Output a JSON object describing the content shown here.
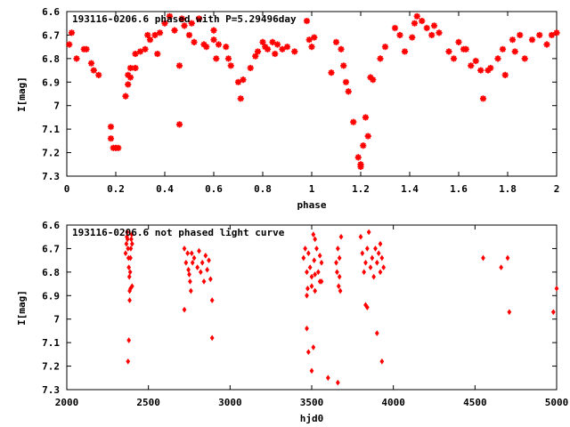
{
  "colors": {
    "points": "#ff0000",
    "axes": "#000000",
    "background": "#ffffff"
  },
  "chart_data": [
    {
      "type": "scatter",
      "title": "193116-0206.6 phased with P=5.29496day",
      "xlabel": "phase",
      "ylabel": "I[mag]",
      "xlim": [
        0,
        2
      ],
      "ylim": [
        6.6,
        7.3
      ],
      "y_inverted": true,
      "grid": false,
      "xticks": [
        "0",
        "0.2",
        "0.4",
        "0.6",
        "0.8",
        "1",
        "1.2",
        "1.4",
        "1.6",
        "1.8",
        "2"
      ],
      "xtick_values": [
        0,
        0.2,
        0.4,
        0.6,
        0.8,
        1,
        1.2,
        1.4,
        1.6,
        1.8,
        2
      ],
      "yticks": [
        "6.6",
        "6.7",
        "6.8",
        "6.9",
        "7",
        "7.1",
        "7.2",
        "7.3"
      ],
      "ytick_values": [
        6.6,
        6.7,
        6.8,
        6.9,
        7,
        7.1,
        7.2,
        7.3
      ],
      "series": [
        {
          "marker": "star",
          "x": [
            0.01,
            0.02,
            0.04,
            0.07,
            0.08,
            0.1,
            0.11,
            0.13,
            0.18,
            0.18,
            0.19,
            0.2,
            0.21,
            0.24,
            0.25,
            0.25,
            0.26,
            0.26,
            0.28,
            0.28,
            0.3,
            0.32,
            0.33,
            0.34,
            0.36,
            0.37,
            0.38,
            0.4,
            0.42,
            0.44,
            0.46,
            0.46,
            0.47,
            0.48,
            0.5,
            0.51,
            0.52,
            0.54,
            0.56,
            0.57,
            0.6,
            0.6,
            0.61,
            0.62,
            0.65,
            0.66,
            0.67,
            0.7,
            0.71,
            0.72,
            0.75,
            0.77,
            0.78,
            0.8,
            0.81,
            0.82,
            0.84,
            0.85,
            0.86,
            0.88,
            0.9,
            0.93,
            0.98,
            0.99,
            1,
            1.01,
            1.08,
            1.1,
            1.12,
            1.13,
            1.14,
            1.15,
            1.17,
            1.19,
            1.2,
            1.2,
            1.21,
            1.22,
            1.23,
            1.24,
            1.25,
            1.28,
            1.3,
            1.34,
            1.36,
            1.38,
            1.41,
            1.42,
            1.43,
            1.45,
            1.47,
            1.49,
            1.5,
            1.52,
            1.56,
            1.58,
            1.6,
            1.62,
            1.63,
            1.65,
            1.67,
            1.69,
            1.7,
            1.72,
            1.73,
            1.76,
            1.78,
            1.79,
            1.82,
            1.83,
            1.85,
            1.87,
            1.9,
            1.93,
            1.96,
            1.98,
            2
          ],
          "y": [
            6.74,
            6.69,
            6.8,
            6.76,
            6.76,
            6.82,
            6.85,
            6.87,
            7.09,
            7.14,
            7.18,
            7.18,
            7.18,
            6.96,
            6.87,
            6.91,
            6.84,
            6.88,
            6.84,
            6.78,
            6.77,
            6.76,
            6.7,
            6.72,
            6.7,
            6.78,
            6.69,
            6.65,
            6.62,
            6.68,
            6.83,
            7.08,
            6.63,
            6.66,
            6.7,
            6.65,
            6.73,
            6.63,
            6.74,
            6.75,
            6.68,
            6.72,
            6.8,
            6.74,
            6.75,
            6.8,
            6.83,
            6.9,
            6.97,
            6.89,
            6.84,
            6.79,
            6.77,
            6.73,
            6.75,
            6.76,
            6.73,
            6.78,
            6.74,
            6.76,
            6.75,
            6.77,
            6.64,
            6.72,
            6.75,
            6.71,
            6.86,
            6.73,
            6.76,
            6.83,
            6.9,
            6.94,
            7.07,
            7.22,
            7.25,
            7.26,
            7.17,
            7.05,
            7.13,
            6.88,
            6.89,
            6.8,
            6.75,
            6.67,
            6.7,
            6.77,
            6.71,
            6.65,
            6.62,
            6.64,
            6.67,
            6.7,
            6.66,
            6.69,
            6.77,
            6.8,
            6.73,
            6.76,
            6.76,
            6.83,
            6.81,
            6.85,
            6.97,
            6.85,
            6.84,
            6.8,
            6.76,
            6.87,
            6.72,
            6.77,
            6.7,
            6.8,
            6.72,
            6.7,
            6.74,
            6.7,
            6.69
          ]
        }
      ]
    },
    {
      "type": "scatter",
      "title": "193116-0206.6 not phased light curve",
      "xlabel": "hjd0",
      "ylabel": "I[mag]",
      "xlim": [
        2000,
        5000
      ],
      "ylim": [
        6.6,
        7.3
      ],
      "y_inverted": true,
      "grid": false,
      "xticks": [
        "2000",
        "2500",
        "3000",
        "3500",
        "4000",
        "4500",
        "5000"
      ],
      "xtick_values": [
        2000,
        2500,
        3000,
        3500,
        4000,
        4500,
        5000
      ],
      "yticks": [
        "6.6",
        "6.7",
        "6.8",
        "6.9",
        "7",
        "7.1",
        "7.2",
        "7.3"
      ],
      "ytick_values": [
        6.6,
        6.7,
        6.8,
        6.9,
        7,
        7.1,
        7.2,
        7.3
      ],
      "series": [
        {
          "marker": "diamond",
          "x": [
            2360,
            2365,
            2368,
            2370,
            2372,
            2375,
            2378,
            2380,
            2383,
            2385,
            2388,
            2390,
            2392,
            2395,
            2398,
            2400,
            2380,
            2390,
            2400,
            2375,
            2385,
            2720,
            2730,
            2740,
            2745,
            2750,
            2755,
            2760,
            2765,
            2770,
            2780,
            2800,
            2810,
            2820,
            2830,
            2840,
            2850,
            2860,
            2870,
            2880,
            2890,
            2720,
            2890,
            3450,
            3460,
            3470,
            3475,
            3480,
            3490,
            3500,
            3510,
            3515,
            3520,
            3530,
            3540,
            3550,
            3560,
            3470,
            3480,
            3500,
            3510,
            3520,
            3470,
            3500,
            3520,
            3550,
            3560,
            3600,
            3650,
            3655,
            3660,
            3665,
            3670,
            3675,
            3680,
            3660,
            3670,
            3800,
            3810,
            3820,
            3830,
            3840,
            3850,
            3860,
            3870,
            3880,
            3890,
            3900,
            3910,
            3920,
            3930,
            3940,
            3830,
            3840,
            3920,
            3930,
            3900,
            4550,
            4660,
            4700,
            4710,
            4980,
            5000
          ],
          "y": [
            6.72,
            6.68,
            6.65,
            6.63,
            6.66,
            6.7,
            6.74,
            6.78,
            6.82,
            6.88,
            6.8,
            6.74,
            6.7,
            6.66,
            6.64,
            6.68,
            7.09,
            6.87,
            6.86,
            7.18,
            6.92,
            6.7,
            6.76,
            6.72,
            6.79,
            6.81,
            6.84,
            6.88,
            6.72,
            6.76,
            6.74,
            6.78,
            6.71,
            6.8,
            6.76,
            6.84,
            6.73,
            6.79,
            6.75,
            6.83,
            6.92,
            6.96,
            7.08,
            6.74,
            6.7,
            6.8,
            6.87,
            6.72,
            6.78,
            6.82,
            6.64,
            6.75,
            6.88,
            6.7,
            6.8,
            6.84,
            6.76,
            7.04,
            7.14,
            7.22,
            7.12,
            6.66,
            6.9,
            6.86,
            6.81,
            6.73,
            6.84,
            7.25,
            6.76,
            6.8,
            6.7,
            6.86,
            6.74,
            6.88,
            6.65,
            7.27,
            6.82,
            6.65,
            6.72,
            6.8,
            6.76,
            6.7,
            6.63,
            6.78,
            6.74,
            6.82,
            6.7,
            6.76,
            6.72,
            6.8,
            6.74,
            6.78,
            6.94,
            6.95,
            6.68,
            7.18,
            7.06,
            6.74,
            6.78,
            6.74,
            6.97,
            6.97,
            6.87
          ]
        }
      ]
    }
  ]
}
